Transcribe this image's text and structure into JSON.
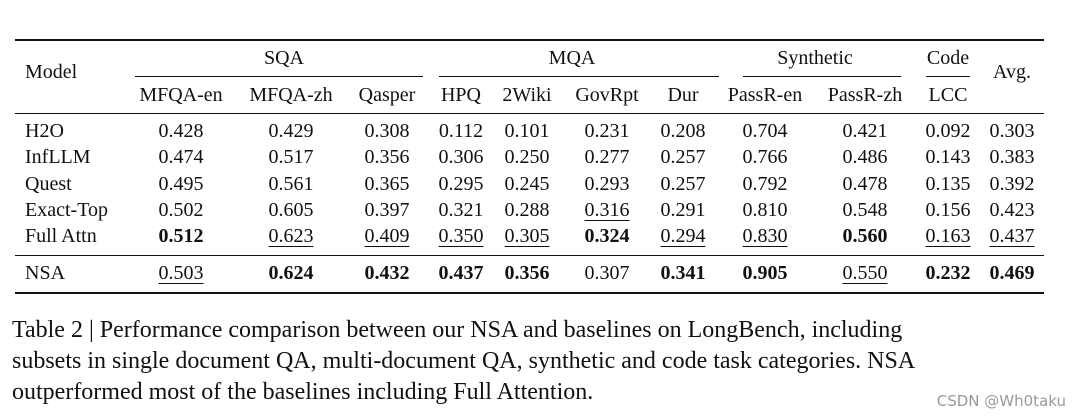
{
  "table": {
    "header": {
      "model": "Model",
      "avg": "Avg.",
      "groups": [
        {
          "label": "SQA",
          "span": 3
        },
        {
          "label": "MQA",
          "span": 4
        },
        {
          "label": "Synthetic",
          "span": 2
        },
        {
          "label": "Code",
          "span": 1
        }
      ],
      "columns": [
        "MFQA-en",
        "MFQA-zh",
        "Qasper",
        "HPQ",
        "2Wiki",
        "GovRpt",
        "Dur",
        "PassR-en",
        "PassR-zh",
        "LCC"
      ]
    },
    "rows": [
      {
        "model": "H2O",
        "cells": [
          {
            "text": "0.428"
          },
          {
            "text": "0.429"
          },
          {
            "text": "0.308"
          },
          {
            "text": "0.112"
          },
          {
            "text": "0.101"
          },
          {
            "text": "0.231"
          },
          {
            "text": "0.208"
          },
          {
            "text": "0.704"
          },
          {
            "text": "0.421"
          },
          {
            "text": "0.092"
          },
          {
            "text": "0.303"
          }
        ]
      },
      {
        "model": "InfLLM",
        "cells": [
          {
            "text": "0.474"
          },
          {
            "text": "0.517"
          },
          {
            "text": "0.356"
          },
          {
            "text": "0.306"
          },
          {
            "text": "0.250"
          },
          {
            "text": "0.277"
          },
          {
            "text": "0.257"
          },
          {
            "text": "0.766"
          },
          {
            "text": "0.486"
          },
          {
            "text": "0.143"
          },
          {
            "text": "0.383"
          }
        ]
      },
      {
        "model": "Quest",
        "cells": [
          {
            "text": "0.495"
          },
          {
            "text": "0.561"
          },
          {
            "text": "0.365"
          },
          {
            "text": "0.295"
          },
          {
            "text": "0.245"
          },
          {
            "text": "0.293"
          },
          {
            "text": "0.257"
          },
          {
            "text": "0.792"
          },
          {
            "text": "0.478"
          },
          {
            "text": "0.135"
          },
          {
            "text": "0.392"
          }
        ]
      },
      {
        "model": "Exact-Top",
        "cells": [
          {
            "text": "0.502"
          },
          {
            "text": "0.605"
          },
          {
            "text": "0.397"
          },
          {
            "text": "0.321"
          },
          {
            "text": "0.288"
          },
          {
            "text": "0.316",
            "underline": true
          },
          {
            "text": "0.291"
          },
          {
            "text": "0.810"
          },
          {
            "text": "0.548"
          },
          {
            "text": "0.156"
          },
          {
            "text": "0.423"
          }
        ]
      },
      {
        "model": "Full Attn",
        "cells": [
          {
            "text": "0.512",
            "bold": true
          },
          {
            "text": "0.623",
            "underline": true
          },
          {
            "text": "0.409",
            "underline": true
          },
          {
            "text": "0.350",
            "underline": true
          },
          {
            "text": "0.305",
            "underline": true
          },
          {
            "text": "0.324",
            "bold": true
          },
          {
            "text": "0.294",
            "underline": true
          },
          {
            "text": "0.830",
            "underline": true
          },
          {
            "text": "0.560",
            "bold": true
          },
          {
            "text": "0.163",
            "underline": true
          },
          {
            "text": "0.437",
            "underline": true
          }
        ]
      },
      {
        "model": "NSA",
        "cells": [
          {
            "text": "0.503",
            "underline": true
          },
          {
            "text": "0.624",
            "bold": true
          },
          {
            "text": "0.432",
            "bold": true
          },
          {
            "text": "0.437",
            "bold": true
          },
          {
            "text": "0.356",
            "bold": true
          },
          {
            "text": "0.307"
          },
          {
            "text": "0.341",
            "bold": true
          },
          {
            "text": "0.905",
            "bold": true
          },
          {
            "text": "0.550",
            "underline": true
          },
          {
            "text": "0.232",
            "bold": true
          },
          {
            "text": "0.469",
            "bold": true
          }
        ]
      }
    ]
  },
  "caption": [
    "Table 2 | Performance comparison between our NSA and baselines on LongBench, including",
    "subsets in single document QA, multi-document QA, synthetic and code task categories. NSA",
    "outperformed most of the baselines including Full Attention."
  ],
  "watermark": "CSDN @Wh0taku"
}
